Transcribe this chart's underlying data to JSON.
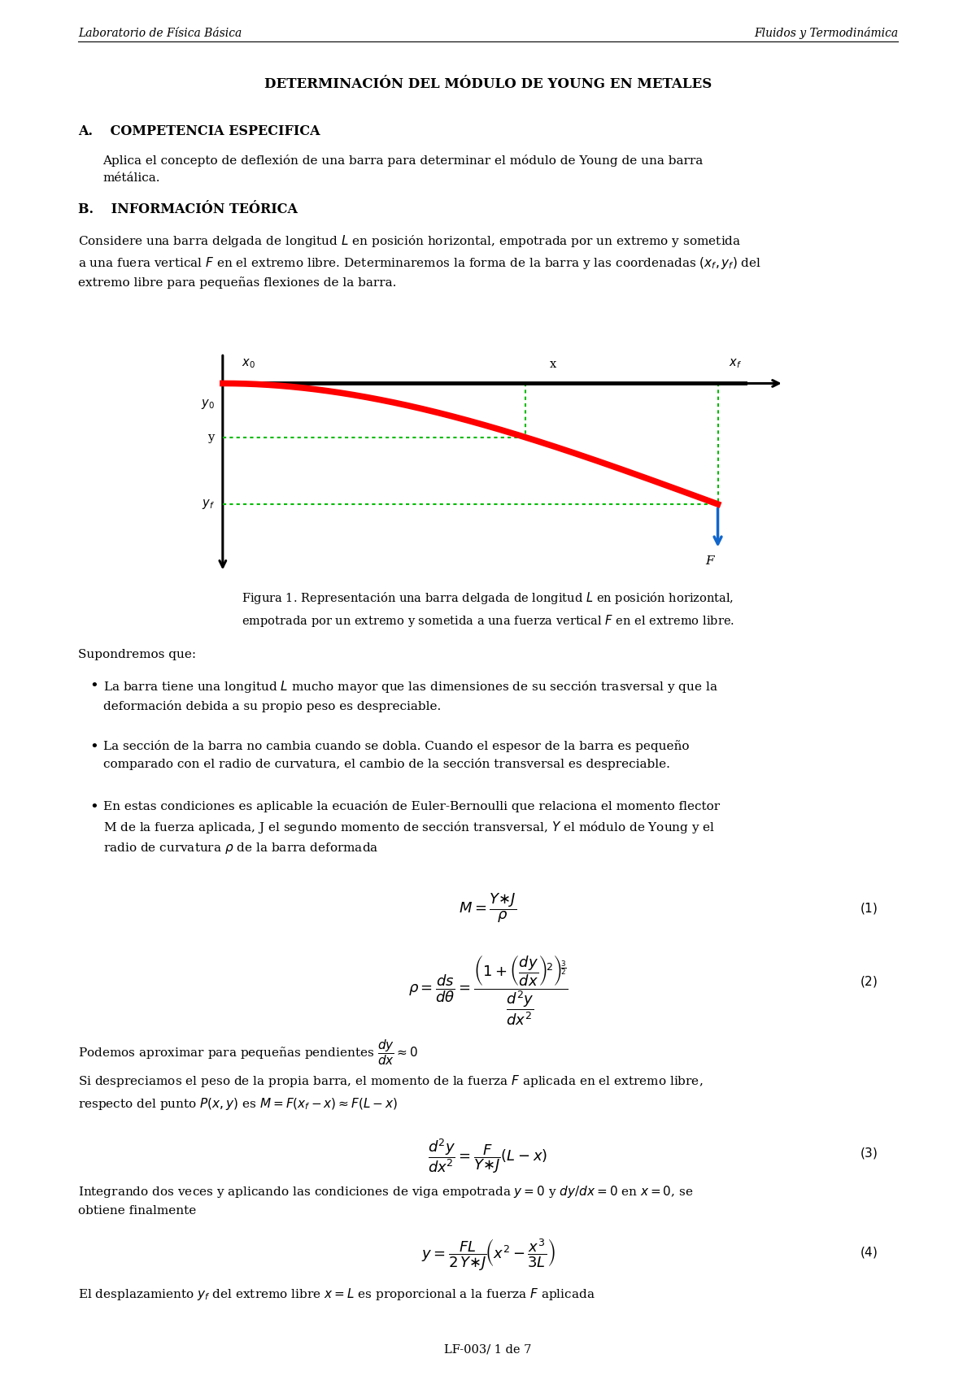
{
  "header_left": "Laboratorio de Física Básica",
  "header_right": "Fluidos y Termodinámica",
  "title": "DETERMINACIÓN DEL MÓDULO DE YOUNG EN METALES",
  "footer": "LF-003/ 1 de 7",
  "bg_color": "#ffffff",
  "text_color": "#000000",
  "ml": 0.08,
  "mr": 0.92
}
